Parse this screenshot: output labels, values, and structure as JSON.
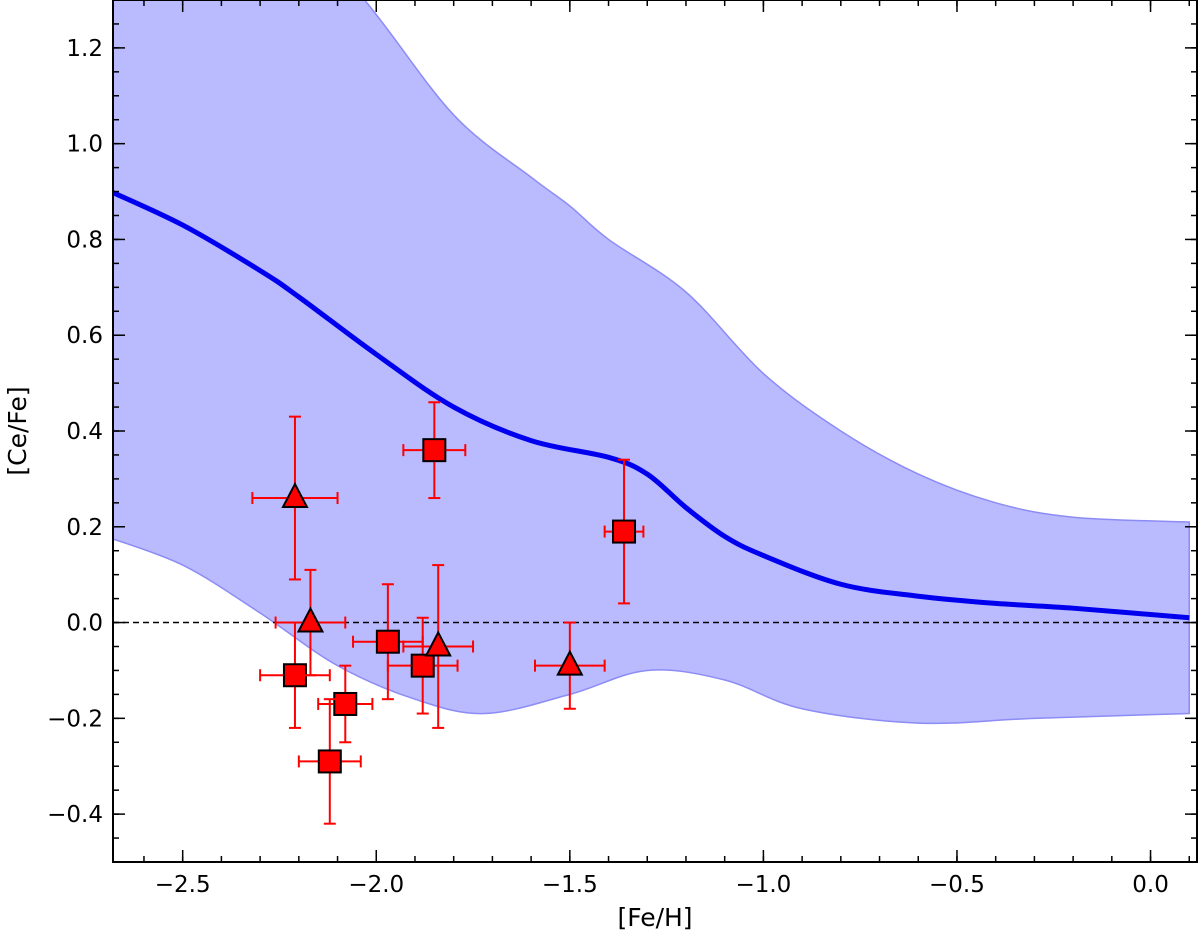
{
  "chart_data": {
    "type": "scatter",
    "xlabel": "[Fe/H]",
    "ylabel": "[Ce/Fe]",
    "xlim": [
      -2.68,
      0.12
    ],
    "ylim": [
      -0.5,
      1.3
    ],
    "xticks": [
      -2.5,
      -2.0,
      -1.5,
      -1.0,
      -0.5,
      0.0
    ],
    "xtick_labels": [
      "−2.5",
      "−2.0",
      "−1.5",
      "−1.0",
      "−0.5",
      "0.0"
    ],
    "yticks": [
      -0.4,
      -0.2,
      0.0,
      0.2,
      0.4,
      0.6,
      0.8,
      1.0,
      1.2
    ],
    "ytick_labels": [
      "−0.4",
      "−0.2",
      "0.0",
      "0.2",
      "0.4",
      "0.6",
      "0.8",
      "1.0",
      "1.2"
    ],
    "x_minor_step": 0.1,
    "y_minor_step": 0.05,
    "grid": false,
    "reference_line": {
      "y": 0.0,
      "style": "dashed",
      "color": "#000000"
    },
    "model": {
      "line_color": "#0000ee",
      "band_color": "#babaff",
      "band_edge_color": "#8c8cf5",
      "line": [
        [
          -2.7,
          0.905
        ],
        [
          -2.5,
          0.83
        ],
        [
          -2.3,
          0.735
        ],
        [
          -2.2,
          0.68
        ],
        [
          -2.0,
          0.56
        ],
        [
          -1.8,
          0.45
        ],
        [
          -1.6,
          0.38
        ],
        [
          -1.4,
          0.345
        ],
        [
          -1.3,
          0.31
        ],
        [
          -1.2,
          0.24
        ],
        [
          -1.1,
          0.18
        ],
        [
          -1.0,
          0.14
        ],
        [
          -0.8,
          0.08
        ],
        [
          -0.6,
          0.055
        ],
        [
          -0.4,
          0.04
        ],
        [
          -0.2,
          0.03
        ],
        [
          0.1,
          0.01
        ]
      ],
      "band_upper": [
        [
          -2.7,
          1.9
        ],
        [
          -2.3,
          1.55
        ],
        [
          -2.03,
          1.3
        ],
        [
          -1.8,
          1.06
        ],
        [
          -1.6,
          0.93
        ],
        [
          -1.5,
          0.87
        ],
        [
          -1.4,
          0.8
        ],
        [
          -1.2,
          0.69
        ],
        [
          -1.0,
          0.52
        ],
        [
          -0.8,
          0.4
        ],
        [
          -0.6,
          0.31
        ],
        [
          -0.4,
          0.25
        ],
        [
          -0.2,
          0.22
        ],
        [
          0.1,
          0.21
        ]
      ],
      "band_lower": [
        [
          -2.7,
          0.18
        ],
        [
          -2.5,
          0.12
        ],
        [
          -2.3,
          0.02
        ],
        [
          -2.1,
          -0.09
        ],
        [
          -1.9,
          -0.16
        ],
        [
          -1.72,
          -0.19
        ],
        [
          -1.5,
          -0.15
        ],
        [
          -1.3,
          -0.1
        ],
        [
          -1.1,
          -0.12
        ],
        [
          -0.9,
          -0.18
        ],
        [
          -0.6,
          -0.21
        ],
        [
          -0.3,
          -0.2
        ],
        [
          0.1,
          -0.19
        ]
      ]
    },
    "marker_color": "#ff0000",
    "error_color": "#ff0000",
    "series": [
      {
        "marker": "square",
        "points": [
          {
            "x": -1.85,
            "y": 0.36,
            "xerr": 0.08,
            "yerr": 0.1
          },
          {
            "x": -1.36,
            "y": 0.19,
            "xerr": 0.05,
            "yerr": 0.15
          },
          {
            "x": -2.21,
            "y": -0.11,
            "xerr": 0.09,
            "yerr": 0.11
          },
          {
            "x": -2.08,
            "y": -0.17,
            "xerr": 0.07,
            "yerr": 0.08
          },
          {
            "x": -2.12,
            "y": -0.29,
            "xerr": 0.08,
            "yerr": 0.13
          },
          {
            "x": -1.97,
            "y": -0.04,
            "xerr": 0.09,
            "yerr": 0.12
          },
          {
            "x": -1.88,
            "y": -0.09,
            "xerr": 0.09,
            "yerr": 0.1
          }
        ]
      },
      {
        "marker": "triangle",
        "points": [
          {
            "x": -2.21,
            "y": 0.26,
            "xerr": 0.11,
            "yerr": 0.17
          },
          {
            "x": -2.17,
            "y": 0.0,
            "xerr": 0.09,
            "yerr": 0.11
          },
          {
            "x": -1.84,
            "y": -0.05,
            "xerr": 0.09,
            "yerr": 0.17
          },
          {
            "x": -1.5,
            "y": -0.09,
            "xerr": 0.09,
            "yerr": 0.09
          }
        ]
      }
    ]
  }
}
